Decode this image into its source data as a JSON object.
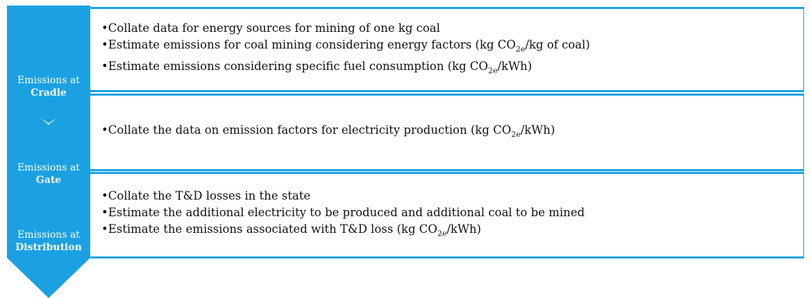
{
  "stages": [
    {
      "label_line1": "Emissions at",
      "label_line2": "Cradle",
      "bullets": [
        [
          "Collate data for energy sources for mining of one kg coal"
        ],
        [
          "Estimate emissions for coal mining considering energy factors (kg CO",
          "2e",
          "/kg of coal)"
        ],
        [
          "Estimate emissions considering specific fuel consumption (kg CO",
          "2e",
          "/kWh)"
        ]
      ]
    },
    {
      "label_line1": "Emissions at",
      "label_line2": "Gate",
      "bullets": [
        [
          "Collate the data on emission factors for electricity production (kg CO",
          "2e",
          "/kWh)"
        ]
      ]
    },
    {
      "label_line1": "Emissions at",
      "label_line2": "Distribution",
      "bullets": [
        [
          "Collate the T&D losses in the state"
        ],
        [
          "Estimate the additional electricity to be produced and additional coal to be mined"
        ],
        [
          "Estimate the emissions associated with T&D loss (kg CO",
          "2e",
          "/kWh)"
        ]
      ]
    }
  ]
}
